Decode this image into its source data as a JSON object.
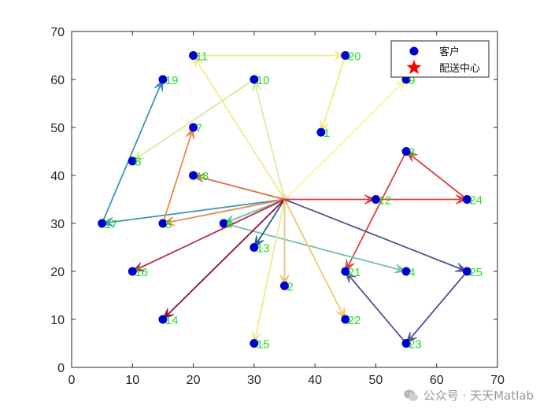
{
  "chart_data": {
    "type": "scatter",
    "title": "",
    "xlabel": "",
    "ylabel": "",
    "xlim": [
      0,
      70
    ],
    "ylim": [
      0,
      70
    ],
    "xticks": [
      0,
      10,
      20,
      30,
      40,
      50,
      60,
      70
    ],
    "yticks": [
      0,
      10,
      20,
      30,
      40,
      50,
      60,
      70
    ],
    "legend": {
      "placement": "top-right",
      "entries": [
        {
          "label": "客户",
          "marker": "circle",
          "color": "#0000cc"
        },
        {
          "label": "配送中心",
          "marker": "star",
          "color": "#ff0000"
        }
      ]
    },
    "depot": {
      "x": 35,
      "y": 35,
      "color": "#ff0000"
    },
    "customers": [
      {
        "id": "1",
        "x": 41,
        "y": 49
      },
      {
        "id": "2",
        "x": 35,
        "y": 17
      },
      {
        "id": "3",
        "x": 55,
        "y": 45
      },
      {
        "id": "4",
        "x": 55,
        "y": 20
      },
      {
        "id": "5",
        "x": 15,
        "y": 30
      },
      {
        "id": "6",
        "x": 25,
        "y": 30
      },
      {
        "id": "7",
        "x": 20,
        "y": 50
      },
      {
        "id": "8",
        "x": 10,
        "y": 43
      },
      {
        "id": "9",
        "x": 55,
        "y": 60
      },
      {
        "id": "10",
        "x": 30,
        "y": 60
      },
      {
        "id": "11",
        "x": 20,
        "y": 65
      },
      {
        "id": "12",
        "x": 50,
        "y": 35
      },
      {
        "id": "13",
        "x": 30,
        "y": 25
      },
      {
        "id": "14",
        "x": 15,
        "y": 10
      },
      {
        "id": "15",
        "x": 30,
        "y": 5
      },
      {
        "id": "16",
        "x": 10,
        "y": 20
      },
      {
        "id": "17",
        "x": 5,
        "y": 30
      },
      {
        "id": "18",
        "x": 20,
        "y": 40
      },
      {
        "id": "19",
        "x": 15,
        "y": 60
      },
      {
        "id": "20",
        "x": 45,
        "y": 65
      },
      {
        "id": "21",
        "x": 45,
        "y": 20
      },
      {
        "id": "22",
        "x": 45,
        "y": 10
      },
      {
        "id": "23",
        "x": 55,
        "y": 5
      },
      {
        "id": "24",
        "x": 65,
        "y": 35
      },
      {
        "id": "25",
        "x": 65,
        "y": 20
      }
    ],
    "routes": [
      {
        "color": "#f3e98a",
        "stops": [
          "11",
          "20",
          "1"
        ]
      },
      {
        "color": "#f7f4a8",
        "stops": [
          "9"
        ]
      },
      {
        "color": "#d7eb9c",
        "stops": [
          "10",
          "8"
        ]
      },
      {
        "color": "#3a94b6",
        "stops": [
          "17",
          "19"
        ]
      },
      {
        "color": "#e8884e",
        "stops": [
          "5",
          "7"
        ]
      },
      {
        "color": "#e06c44",
        "stops": [
          "18"
        ]
      },
      {
        "color": "#d8433f",
        "stops": [
          "12",
          "24",
          "3",
          "21"
        ]
      },
      {
        "color": "#6dc3a6",
        "stops": [
          "6",
          "4"
        ]
      },
      {
        "color": "#23608e",
        "stops": [
          "13"
        ]
      },
      {
        "color": "#b52e4c",
        "stops": [
          "16"
        ]
      },
      {
        "color": "#8c0f3e",
        "stops": [
          "14"
        ]
      },
      {
        "color": "#f5e88c",
        "stops": [
          "15"
        ]
      },
      {
        "color": "#f0c47a",
        "stops": [
          "2"
        ]
      },
      {
        "color": "#f7c56e",
        "stops": [
          "22"
        ]
      },
      {
        "color": "#4e4f95",
        "stops": [
          "25",
          "23",
          "21"
        ]
      }
    ]
  },
  "watermark": {
    "text": "公众号 · 天天Matlab"
  }
}
